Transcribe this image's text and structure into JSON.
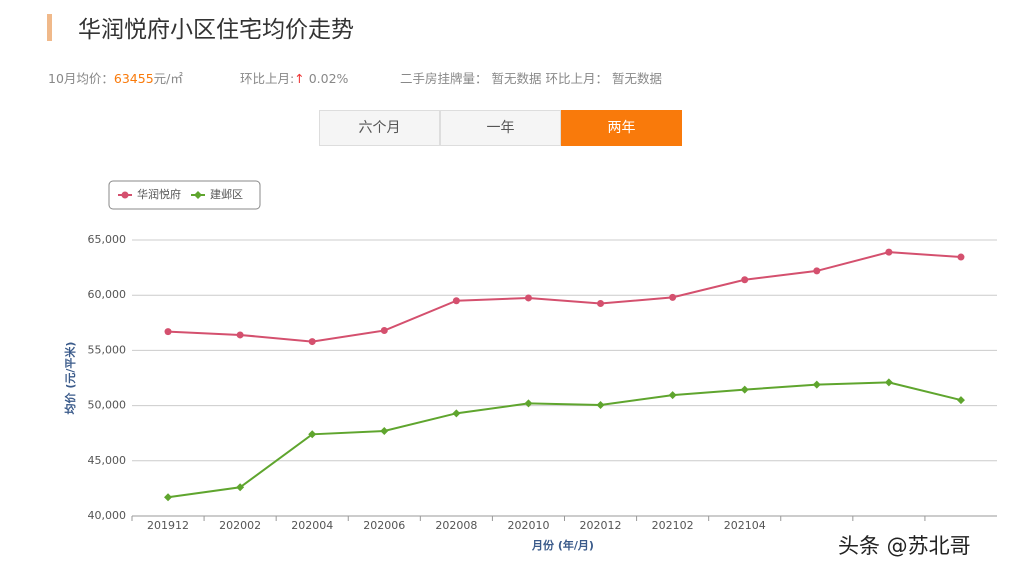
{
  "header": {
    "title": "华润悦府小区住宅均价走势",
    "price_label": "10月均价：",
    "price": "63455",
    "price_unit": "元/㎡",
    "mom_label": "环比上月:",
    "mom_arrow": "↑",
    "mom_value": "0.02%",
    "listing_label": "二手房挂牌量：",
    "listing_value": "暂无数据",
    "listing_mom_label": "环比上月：",
    "listing_mom_value": "暂无数据"
  },
  "tabs": [
    "六个月",
    "一年",
    "两年"
  ],
  "watermark": "头条 @苏北哥",
  "chart_data": {
    "type": "line",
    "xlabel": "月份 (年/月)",
    "ylabel": "均价 (元/平米)",
    "categories": [
      "201912",
      "202002",
      "202004",
      "202006",
      "202008",
      "202010",
      "202012",
      "202102",
      "202104",
      null,
      null,
      null
    ],
    "series": [
      {
        "name": "华润悦府",
        "color": "#d4506e",
        "marker": "circle",
        "values": [
          56700,
          56400,
          55800,
          56800,
          59500,
          59750,
          59250,
          59800,
          61400,
          62200,
          63900,
          63455
        ]
      },
      {
        "name": "建邺区",
        "color": "#5fa52e",
        "marker": "diamond",
        "values": [
          41700,
          42600,
          47400,
          47700,
          49300,
          50200,
          50050,
          50950,
          51450,
          51900,
          52100,
          50500
        ]
      }
    ],
    "ylim": [
      40000,
      65000
    ],
    "yticks": [
      {
        "value": 40000,
        "label": "40,000"
      },
      {
        "value": 45000,
        "label": "45,000"
      },
      {
        "value": 50000,
        "label": "50,000"
      },
      {
        "value": 55000,
        "label": "55,000"
      },
      {
        "value": 60000,
        "label": "60,000"
      },
      {
        "value": 65000,
        "label": "65,000"
      }
    ],
    "grid": true,
    "legend": "top-left"
  }
}
